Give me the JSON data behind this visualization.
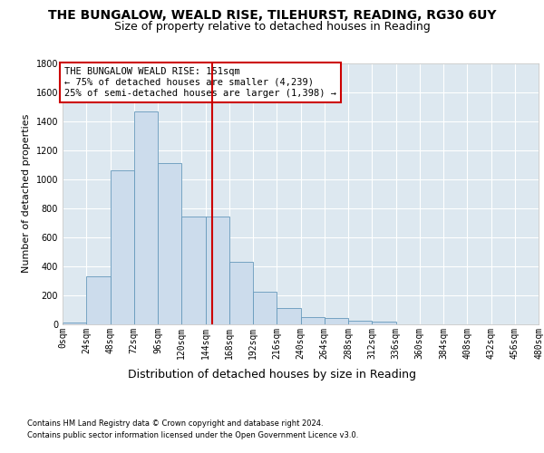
{
  "title": "THE BUNGALOW, WEALD RISE, TILEHURST, READING, RG30 6UY",
  "subtitle": "Size of property relative to detached houses in Reading",
  "xlabel": "Distribution of detached houses by size in Reading",
  "ylabel": "Number of detached properties",
  "footnote1": "Contains HM Land Registry data © Crown copyright and database right 2024.",
  "footnote2": "Contains public sector information licensed under the Open Government Licence v3.0.",
  "bin_edges": [
    0,
    24,
    48,
    72,
    96,
    120,
    144,
    168,
    192,
    216,
    240,
    264,
    288,
    312,
    336,
    360,
    384,
    408,
    432,
    456,
    480
  ],
  "bin_labels": [
    "0sqm",
    "24sqm",
    "48sqm",
    "72sqm",
    "96sqm",
    "120sqm",
    "144sqm",
    "168sqm",
    "192sqm",
    "216sqm",
    "240sqm",
    "264sqm",
    "288sqm",
    "312sqm",
    "336sqm",
    "360sqm",
    "384sqm",
    "408sqm",
    "432sqm",
    "456sqm",
    "480sqm"
  ],
  "counts": [
    10,
    330,
    1060,
    1470,
    1110,
    740,
    740,
    430,
    220,
    110,
    50,
    40,
    25,
    15,
    0,
    0,
    0,
    0,
    0,
    0
  ],
  "bar_color": "#ccdcec",
  "bar_edgecolor": "#6699bb",
  "property_size": 151,
  "vline_color": "#cc0000",
  "annotation_text": "THE BUNGALOW WEALD RISE: 151sqm\n← 75% of detached houses are smaller (4,239)\n25% of semi-detached houses are larger (1,398) →",
  "annotation_box_color": "#ffffff",
  "annotation_box_edgecolor": "#cc0000",
  "ylim": [
    0,
    1800
  ],
  "yticks": [
    0,
    200,
    400,
    600,
    800,
    1000,
    1200,
    1400,
    1600,
    1800
  ],
  "xlim": [
    0,
    480
  ],
  "bg_color": "#dde8f0",
  "fig_bg": "#ffffff",
  "title_fontsize": 10,
  "subtitle_fontsize": 9,
  "tick_fontsize": 7,
  "ylabel_fontsize": 8,
  "xlabel_fontsize": 9,
  "footnote_fontsize": 6,
  "annotation_fontsize": 7.5
}
